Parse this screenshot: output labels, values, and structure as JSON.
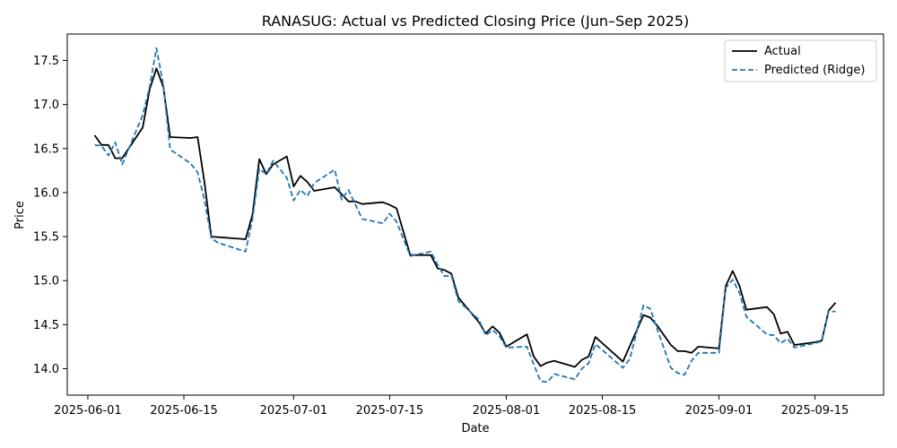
{
  "chart_data": {
    "type": "line",
    "title": "RANASUG: Actual vs Predicted Closing Price (Jun–Sep 2025)",
    "xlabel": "Date",
    "ylabel": "Price",
    "xlim": [
      "2025-05-29",
      "2025-09-25"
    ],
    "ylim": [
      13.7,
      17.8
    ],
    "x_ticks": [
      "2025-06-01",
      "2025-06-15",
      "2025-07-01",
      "2025-07-15",
      "2025-08-01",
      "2025-08-15",
      "2025-09-01",
      "2025-09-15"
    ],
    "y_ticks": [
      14.0,
      14.5,
      15.0,
      15.5,
      16.0,
      16.5,
      17.0,
      17.5
    ],
    "y_tick_labels": [
      "14.0",
      "14.5",
      "15.0",
      "15.5",
      "16.0",
      "16.5",
      "17.0",
      "17.5"
    ],
    "grid": false,
    "legend_position": "top-right",
    "series": [
      {
        "name": "Actual",
        "color": "#000000",
        "style": "solid",
        "points": [
          [
            "2025-06-02",
            16.65
          ],
          [
            "2025-06-03",
            16.54
          ],
          [
            "2025-06-04",
            16.54
          ],
          [
            "2025-06-05",
            16.39
          ],
          [
            "2025-06-06",
            16.39
          ],
          [
            "2025-06-09",
            16.74
          ],
          [
            "2025-06-10",
            17.17
          ],
          [
            "2025-06-11",
            17.41
          ],
          [
            "2025-06-12",
            17.2
          ],
          [
            "2025-06-13",
            16.63
          ],
          [
            "2025-06-16",
            16.62
          ],
          [
            "2025-06-17",
            16.63
          ],
          [
            "2025-06-18",
            16.12
          ],
          [
            "2025-06-19",
            15.5
          ],
          [
            "2025-06-24",
            15.47
          ],
          [
            "2025-06-25",
            15.75
          ],
          [
            "2025-06-26",
            16.38
          ],
          [
            "2025-06-27",
            16.21
          ],
          [
            "2025-06-28",
            16.32
          ],
          [
            "2025-06-30",
            16.41
          ],
          [
            "2025-07-01",
            16.07
          ],
          [
            "2025-07-02",
            16.19
          ],
          [
            "2025-07-03",
            16.12
          ],
          [
            "2025-07-04",
            16.02
          ],
          [
            "2025-07-07",
            16.06
          ],
          [
            "2025-07-08",
            15.98
          ],
          [
            "2025-07-09",
            15.9
          ],
          [
            "2025-07-10",
            15.9
          ],
          [
            "2025-07-11",
            15.87
          ],
          [
            "2025-07-14",
            15.89
          ],
          [
            "2025-07-15",
            15.86
          ],
          [
            "2025-07-16",
            15.82
          ],
          [
            "2025-07-18",
            15.29
          ],
          [
            "2025-07-21",
            15.29
          ],
          [
            "2025-07-22",
            15.14
          ],
          [
            "2025-07-23",
            15.12
          ],
          [
            "2025-07-24",
            15.08
          ],
          [
            "2025-07-25",
            14.81
          ],
          [
            "2025-07-28",
            14.53
          ],
          [
            "2025-07-29",
            14.4
          ],
          [
            "2025-07-30",
            14.48
          ],
          [
            "2025-07-31",
            14.41
          ],
          [
            "2025-08-01",
            14.25
          ],
          [
            "2025-08-04",
            14.39
          ],
          [
            "2025-08-05",
            14.14
          ],
          [
            "2025-08-06",
            14.03
          ],
          [
            "2025-08-07",
            14.07
          ],
          [
            "2025-08-08",
            14.09
          ],
          [
            "2025-08-11",
            14.02
          ],
          [
            "2025-08-12",
            14.1
          ],
          [
            "2025-08-13",
            14.14
          ],
          [
            "2025-08-14",
            14.36
          ],
          [
            "2025-08-18",
            14.08
          ],
          [
            "2025-08-21",
            14.61
          ],
          [
            "2025-08-22",
            14.58
          ],
          [
            "2025-08-23",
            14.49
          ],
          [
            "2025-08-25",
            14.27
          ],
          [
            "2025-08-26",
            14.2
          ],
          [
            "2025-08-27",
            14.2
          ],
          [
            "2025-08-28",
            14.18
          ],
          [
            "2025-08-29",
            14.25
          ],
          [
            "2025-09-01",
            14.23
          ],
          [
            "2025-09-02",
            14.94
          ],
          [
            "2025-09-03",
            15.11
          ],
          [
            "2025-09-04",
            14.94
          ],
          [
            "2025-09-05",
            14.67
          ],
          [
            "2025-09-08",
            14.7
          ],
          [
            "2025-09-09",
            14.62
          ],
          [
            "2025-09-10",
            14.4
          ],
          [
            "2025-09-11",
            14.42
          ],
          [
            "2025-09-12",
            14.27
          ],
          [
            "2025-09-15",
            14.3
          ],
          [
            "2025-09-16",
            14.32
          ],
          [
            "2025-09-17",
            14.66
          ],
          [
            "2025-09-18",
            14.75
          ]
        ]
      },
      {
        "name": "Predicted (Ridge)",
        "color": "#1f77b4",
        "style": "dashed",
        "points": [
          [
            "2025-06-02",
            16.54
          ],
          [
            "2025-06-03",
            16.53
          ],
          [
            "2025-06-04",
            16.42
          ],
          [
            "2025-06-05",
            16.57
          ],
          [
            "2025-06-06",
            16.32
          ],
          [
            "2025-06-09",
            16.88
          ],
          [
            "2025-06-10",
            17.2
          ],
          [
            "2025-06-11",
            17.64
          ],
          [
            "2025-06-12",
            17.22
          ],
          [
            "2025-06-13",
            16.49
          ],
          [
            "2025-06-16",
            16.33
          ],
          [
            "2025-06-17",
            16.23
          ],
          [
            "2025-06-18",
            15.92
          ],
          [
            "2025-06-19",
            15.48
          ],
          [
            "2025-06-20",
            15.43
          ],
          [
            "2025-06-24",
            15.33
          ],
          [
            "2025-06-25",
            15.7
          ],
          [
            "2025-06-26",
            16.27
          ],
          [
            "2025-06-27",
            16.21
          ],
          [
            "2025-06-28",
            16.36
          ],
          [
            "2025-06-30",
            16.17
          ],
          [
            "2025-07-01",
            15.91
          ],
          [
            "2025-07-02",
            16.03
          ],
          [
            "2025-07-03",
            15.96
          ],
          [
            "2025-07-04",
            16.11
          ],
          [
            "2025-07-07",
            16.26
          ],
          [
            "2025-07-08",
            15.92
          ],
          [
            "2025-07-09",
            16.03
          ],
          [
            "2025-07-11",
            15.7
          ],
          [
            "2025-07-14",
            15.65
          ],
          [
            "2025-07-15",
            15.76
          ],
          [
            "2025-07-16",
            15.67
          ],
          [
            "2025-07-18",
            15.28
          ],
          [
            "2025-07-21",
            15.33
          ],
          [
            "2025-07-22",
            15.18
          ],
          [
            "2025-07-23",
            15.05
          ],
          [
            "2025-07-24",
            15.06
          ],
          [
            "2025-07-25",
            14.77
          ],
          [
            "2025-07-28",
            14.56
          ],
          [
            "2025-07-29",
            14.38
          ],
          [
            "2025-07-30",
            14.44
          ],
          [
            "2025-07-31",
            14.37
          ],
          [
            "2025-08-01",
            14.24
          ],
          [
            "2025-08-04",
            14.25
          ],
          [
            "2025-08-05",
            14.05
          ],
          [
            "2025-08-06",
            13.86
          ],
          [
            "2025-08-07",
            13.85
          ],
          [
            "2025-08-08",
            13.94
          ],
          [
            "2025-08-11",
            13.88
          ],
          [
            "2025-08-12",
            14.0
          ],
          [
            "2025-08-13",
            14.06
          ],
          [
            "2025-08-14",
            14.28
          ],
          [
            "2025-08-18",
            14.01
          ],
          [
            "2025-08-19",
            14.11
          ],
          [
            "2025-08-21",
            14.72
          ],
          [
            "2025-08-22",
            14.68
          ],
          [
            "2025-08-23",
            14.45
          ],
          [
            "2025-08-25",
            14.01
          ],
          [
            "2025-08-26",
            13.95
          ],
          [
            "2025-08-27",
            13.93
          ],
          [
            "2025-08-28",
            14.09
          ],
          [
            "2025-08-29",
            14.18
          ],
          [
            "2025-09-01",
            14.18
          ],
          [
            "2025-09-02",
            14.92
          ],
          [
            "2025-09-03",
            15.01
          ],
          [
            "2025-09-04",
            14.86
          ],
          [
            "2025-09-05",
            14.59
          ],
          [
            "2025-09-08",
            14.39
          ],
          [
            "2025-09-09",
            14.38
          ],
          [
            "2025-09-10",
            14.29
          ],
          [
            "2025-09-11",
            14.34
          ],
          [
            "2025-09-12",
            14.24
          ],
          [
            "2025-09-15",
            14.29
          ],
          [
            "2025-09-16",
            14.31
          ],
          [
            "2025-09-17",
            14.65
          ],
          [
            "2025-09-18",
            14.65
          ]
        ]
      }
    ]
  }
}
